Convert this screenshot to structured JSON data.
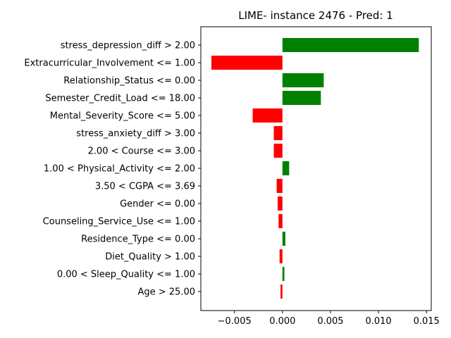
{
  "chart_data": {
    "type": "bar",
    "orientation": "horizontal",
    "title": "LIME- instance 2476 - Pred: 1",
    "xlabel": "",
    "ylabel": "",
    "xlim": [
      -0.0085,
      0.0155
    ],
    "xticks": [
      -0.005,
      0.0,
      0.005,
      0.01,
      0.015
    ],
    "xtick_labels": [
      "−0.005",
      "0.000",
      "0.005",
      "0.010",
      "0.015"
    ],
    "grid": false,
    "legend": "none",
    "positive_color": "#008000",
    "negative_color": "#ff0000",
    "categories": [
      "stress_depression_diff > 2.00",
      "Extracurricular_Involvement <= 1.00",
      "Relationship_Status <= 0.00",
      "Semester_Credit_Load <= 18.00",
      "Mental_Severity_Score <= 5.00",
      "stress_anxiety_diff > 3.00",
      "2.00 < Course <= 3.00",
      "1.00 < Physical_Activity <= 2.00",
      "3.50 < CGPA <= 3.69",
      "Gender <= 0.00",
      "Counseling_Service_Use <= 1.00",
      "Residence_Type <= 0.00",
      "Diet_Quality > 1.00",
      "0.00 < Sleep_Quality <= 1.00",
      "Age > 25.00"
    ],
    "values": [
      0.0142,
      -0.0074,
      0.0043,
      0.004,
      -0.0031,
      -0.0009,
      -0.0009,
      0.0007,
      -0.0006,
      -0.0005,
      -0.0004,
      0.0003,
      -0.0003,
      0.0002,
      -0.0002
    ]
  }
}
